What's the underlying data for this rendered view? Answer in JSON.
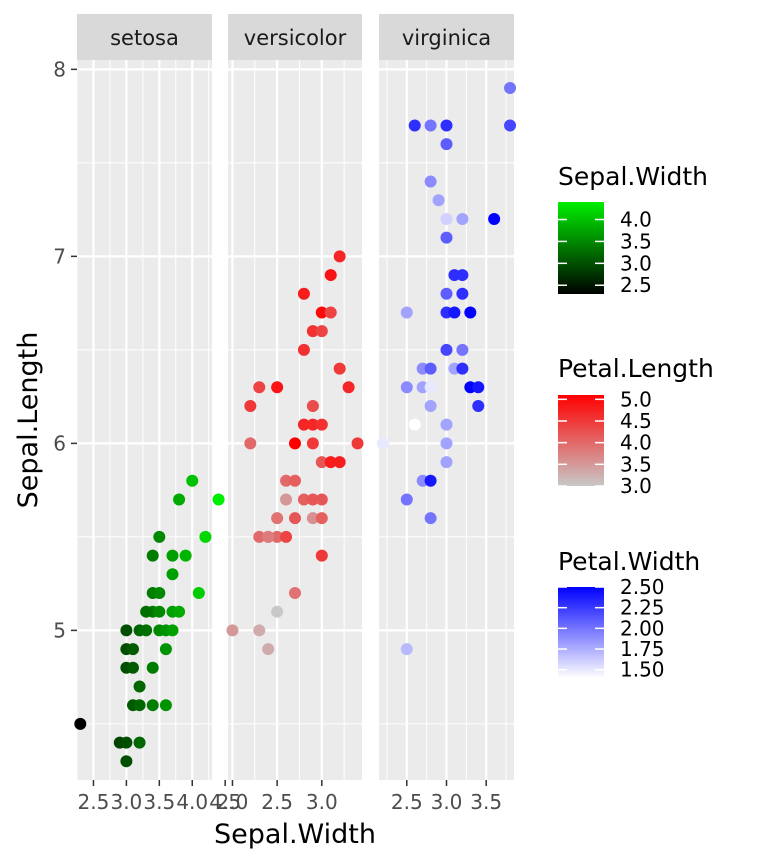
{
  "chart_data": {
    "type": "scatter",
    "xlabel": "Sepal.Width",
    "ylabel": "Sepal.Length",
    "ylim": [
      4.2,
      8.05
    ],
    "y_ticks": [
      5,
      6,
      7,
      8
    ],
    "panels": [
      {
        "name": "setosa",
        "xlim": [
          2.25,
          4.3
        ],
        "x_ticks": [
          2.5,
          3.0,
          3.5,
          4.0,
          4.5
        ],
        "x_tick_labels": [
          "2.5",
          "3.0",
          "3.5",
          "4.0",
          "4.5"
        ],
        "color_by": "Sepal.Width",
        "points": [
          [
            2.3,
            4.5
          ],
          [
            2.9,
            4.4
          ],
          [
            3.0,
            4.4
          ],
          [
            3.2,
            4.4
          ],
          [
            3.0,
            4.3
          ],
          [
            3.0,
            4.9
          ],
          [
            3.1,
            4.9
          ],
          [
            3.0,
            4.8
          ],
          [
            3.1,
            4.8
          ],
          [
            3.0,
            5.0
          ],
          [
            3.2,
            5.0
          ],
          [
            3.3,
            5.0
          ],
          [
            3.2,
            4.7
          ],
          [
            3.1,
            4.6
          ],
          [
            3.2,
            4.6
          ],
          [
            3.4,
            4.6
          ],
          [
            3.6,
            4.6
          ],
          [
            3.4,
            4.8
          ],
          [
            3.5,
            5.0
          ],
          [
            3.6,
            5.0
          ],
          [
            3.7,
            5.0
          ],
          [
            3.4,
            5.1
          ],
          [
            3.5,
            5.1
          ],
          [
            3.6,
            4.9
          ],
          [
            3.3,
            5.1
          ],
          [
            3.7,
            5.1
          ],
          [
            3.8,
            5.1
          ],
          [
            3.4,
            5.2
          ],
          [
            3.5,
            5.2
          ],
          [
            3.4,
            5.4
          ],
          [
            3.5,
            5.5
          ],
          [
            3.7,
            5.3
          ],
          [
            3.7,
            5.4
          ],
          [
            3.9,
            5.4
          ],
          [
            3.8,
            5.7
          ],
          [
            4.0,
            5.8
          ],
          [
            4.1,
            5.2
          ],
          [
            4.2,
            5.5
          ],
          [
            4.4,
            5.7
          ]
        ]
      },
      {
        "name": "versicolor",
        "xlim": [
          1.95,
          3.45
        ],
        "x_ticks": [
          2.0,
          2.5,
          3.0
        ],
        "x_tick_labels": [
          "2.0",
          "2.5",
          "3.0"
        ],
        "color_by": "Petal.Length",
        "points": [
          [
            2.0,
            5.0,
            3.5
          ],
          [
            2.3,
            5.0,
            3.3
          ],
          [
            2.4,
            4.9,
            3.3
          ],
          [
            2.5,
            5.1,
            3.0
          ],
          [
            2.2,
            6.0,
            4.0
          ],
          [
            2.2,
            6.2,
            4.5
          ],
          [
            2.3,
            6.3,
            4.4
          ],
          [
            2.5,
            6.3,
            4.9
          ],
          [
            2.3,
            5.5,
            4.0
          ],
          [
            2.4,
            5.5,
            3.7
          ],
          [
            2.5,
            5.5,
            4.0
          ],
          [
            2.6,
            5.5,
            4.4
          ],
          [
            2.4,
            5.5,
            3.8
          ],
          [
            2.5,
            5.6,
            3.9
          ],
          [
            2.7,
            5.6,
            4.2
          ],
          [
            2.6,
            5.7,
            3.5
          ],
          [
            2.6,
            5.8,
            4.0
          ],
          [
            2.7,
            5.8,
            4.1
          ],
          [
            2.7,
            5.2,
            3.9
          ],
          [
            2.7,
            6.0,
            5.1
          ],
          [
            2.8,
            5.7,
            4.1
          ],
          [
            2.9,
            5.7,
            4.2
          ],
          [
            3.0,
            5.7,
            4.2
          ],
          [
            2.9,
            5.6,
            3.6
          ],
          [
            3.0,
            5.6,
            4.1
          ],
          [
            2.8,
            6.1,
            4.7
          ],
          [
            2.9,
            6.1,
            4.7
          ],
          [
            3.0,
            6.1,
            4.6
          ],
          [
            2.9,
            6.2,
            4.3
          ],
          [
            2.9,
            6.0,
            4.5
          ],
          [
            3.0,
            5.9,
            4.2
          ],
          [
            3.0,
            5.4,
            4.5
          ],
          [
            3.1,
            5.9,
            4.8
          ],
          [
            2.8,
            6.5,
            4.6
          ],
          [
            2.8,
            6.8,
            4.8
          ],
          [
            2.9,
            6.6,
            4.6
          ],
          [
            3.0,
            6.6,
            4.4
          ],
          [
            3.0,
            6.7,
            5.0
          ],
          [
            3.1,
            6.7,
            4.4
          ],
          [
            3.1,
            6.9,
            4.9
          ],
          [
            3.2,
            7.0,
            4.7
          ],
          [
            3.2,
            6.4,
            4.5
          ],
          [
            3.2,
            5.9,
            4.8
          ],
          [
            3.3,
            6.3,
            4.7
          ],
          [
            3.4,
            6.0,
            4.5
          ]
        ]
      },
      {
        "name": "virginica",
        "xlim": [
          2.15,
          3.85
        ],
        "x_ticks": [
          2.5,
          3.0,
          3.5
        ],
        "x_tick_labels": [
          "2.5",
          "3.0",
          "3.5"
        ],
        "color_by": "Petal.Width",
        "points": [
          [
            2.2,
            6.0,
            1.5
          ],
          [
            2.5,
            4.9,
            1.7
          ],
          [
            2.5,
            5.7,
            2.0
          ],
          [
            2.5,
            6.3,
            1.9
          ],
          [
            2.5,
            6.7,
            1.8
          ],
          [
            2.6,
            6.1,
            1.4
          ],
          [
            2.6,
            7.7,
            2.3
          ],
          [
            2.7,
            5.8,
            1.9
          ],
          [
            2.7,
            6.3,
            1.8
          ],
          [
            2.7,
            6.4,
            1.9
          ],
          [
            2.8,
            5.6,
            2.0
          ],
          [
            2.8,
            5.8,
            2.4
          ],
          [
            2.8,
            6.2,
            1.8
          ],
          [
            2.8,
            6.3,
            1.5
          ],
          [
            2.8,
            6.4,
            2.1
          ],
          [
            2.8,
            7.4,
            1.9
          ],
          [
            2.8,
            7.7,
            2.0
          ],
          [
            2.9,
            7.3,
            1.8
          ],
          [
            3.0,
            5.9,
            1.8
          ],
          [
            3.0,
            6.0,
            1.8
          ],
          [
            3.0,
            6.1,
            1.8
          ],
          [
            3.0,
            6.5,
            2.2
          ],
          [
            3.0,
            6.7,
            2.3
          ],
          [
            3.0,
            6.8,
            2.1
          ],
          [
            3.0,
            7.1,
            2.1
          ],
          [
            3.0,
            7.2,
            1.6
          ],
          [
            3.0,
            7.6,
            2.1
          ],
          [
            3.0,
            7.7,
            2.3
          ],
          [
            3.1,
            6.4,
            1.8
          ],
          [
            3.1,
            6.7,
            2.4
          ],
          [
            3.1,
            6.9,
            2.3
          ],
          [
            3.2,
            6.4,
            2.3
          ],
          [
            3.2,
            6.5,
            2.0
          ],
          [
            3.2,
            6.8,
            2.3
          ],
          [
            3.2,
            6.9,
            2.3
          ],
          [
            3.2,
            7.2,
            1.8
          ],
          [
            3.3,
            6.3,
            2.5
          ],
          [
            3.3,
            6.7,
            2.5
          ],
          [
            3.4,
            6.2,
            2.3
          ],
          [
            3.4,
            6.3,
            2.4
          ],
          [
            3.6,
            7.2,
            2.5
          ],
          [
            3.8,
            7.7,
            2.2
          ],
          [
            3.8,
            7.9,
            2.0
          ]
        ]
      }
    ],
    "legends": [
      {
        "title": "Sepal.Width",
        "labels": [
          "4.0",
          "3.5",
          "3.0",
          "2.5"
        ],
        "values": [
          4.0,
          3.5,
          3.0,
          2.5
        ],
        "range": [
          2.3,
          4.4
        ],
        "low": "#000000",
        "high": "#00ee00"
      },
      {
        "title": "Petal.Length",
        "labels": [
          "5.0",
          "4.5",
          "4.0",
          "3.5",
          "3.0"
        ],
        "values": [
          5.0,
          4.5,
          4.0,
          3.5,
          3.0
        ],
        "range": [
          3.0,
          5.1
        ],
        "low": "#c8c8c8",
        "high": "#ff0000"
      },
      {
        "title": "Petal.Width",
        "labels": [
          "2.50",
          "2.25",
          "2.00",
          "1.75",
          "1.50"
        ],
        "values": [
          2.5,
          2.25,
          2.0,
          1.75,
          1.5
        ],
        "range": [
          1.4,
          2.5
        ],
        "low": "#ffffff",
        "high": "#0000ff"
      }
    ],
    "colors": {
      "panel_bg": "#ebebeb",
      "strip_bg": "#d9d9d9",
      "grid": "#ffffff"
    }
  }
}
